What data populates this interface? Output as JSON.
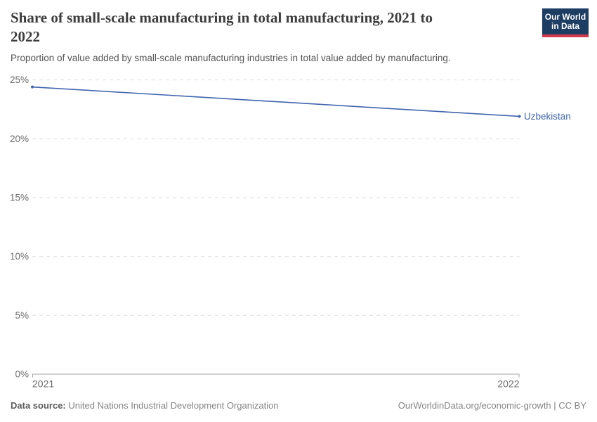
{
  "header": {
    "title": "Share of small-scale manufacturing in total manufacturing, 2021 to\n2022",
    "subtitle": "Proportion of value added by small-scale manufacturing industries in total value added by manufacturing.",
    "logo": {
      "line1": "Our World",
      "line2": "in Data"
    }
  },
  "chart_data": {
    "type": "line",
    "title": "Share of small-scale manufacturing in total manufacturing, 2021 to 2022",
    "xlabel": "",
    "ylabel": "",
    "xlim": [
      2021,
      2022
    ],
    "ylim": [
      0,
      25
    ],
    "grid": "horizontal-dashed",
    "legend_position": "entity-label-at-line-end",
    "x_ticks": [
      {
        "value": 2021,
        "label": "2021"
      },
      {
        "value": 2022,
        "label": "2022"
      }
    ],
    "y_ticks": [
      {
        "value": 0,
        "label": "0%"
      },
      {
        "value": 5,
        "label": "5%"
      },
      {
        "value": 10,
        "label": "10%"
      },
      {
        "value": 15,
        "label": "15%"
      },
      {
        "value": 20,
        "label": "20%"
      },
      {
        "value": 25,
        "label": "25%"
      }
    ],
    "series": [
      {
        "name": "Uzbekistan",
        "x": [
          2021,
          2022
        ],
        "values": [
          24.4,
          21.9
        ],
        "unit": "%",
        "color": "#4165af"
      }
    ]
  },
  "footer": {
    "source_label": "Data source:",
    "source_value": "United Nations Industrial Development Organization",
    "attribution": "OurWorldinData.org/economic-growth | CC BY"
  },
  "colors": {
    "accent_blue": "#4165af",
    "logo_navy": "#1d3d63",
    "logo_red": "#d13b4b",
    "gridline": "#dedede",
    "axis": "#a3a3a3",
    "tick_label": "#6b6b6b",
    "title_text": "#3d3d3d",
    "subtitle_text": "#535353",
    "footer_text": "#848484"
  }
}
